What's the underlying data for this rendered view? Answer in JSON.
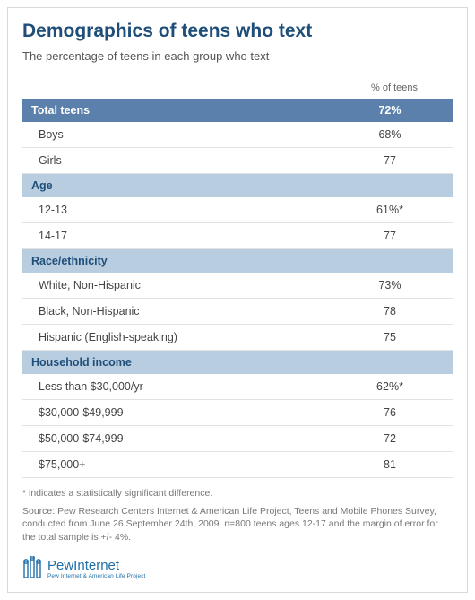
{
  "title": "Demographics of teens who text",
  "subtitle": "The percentage of teens in each group who text",
  "column_header": "% of teens",
  "colors": {
    "title": "#1f4e79",
    "section_dark_bg": "#5a80ab",
    "section_dark_fg": "#ffffff",
    "section_light_bg": "#b9cde1",
    "section_light_fg": "#1f4e79",
    "row_border": "#e2e2e2",
    "text": "#444444",
    "muted": "#777777",
    "logo": "#1f6fa8"
  },
  "sections": [
    {
      "type": "dark",
      "label": "Total teens",
      "value": "72%",
      "rows": [
        {
          "label": "Boys",
          "value": "68%"
        },
        {
          "label": "Girls",
          "value": "77"
        }
      ]
    },
    {
      "type": "light",
      "label": "Age",
      "value": "",
      "rows": [
        {
          "label": "12-13",
          "value": "61%*"
        },
        {
          "label": "14-17",
          "value": "77"
        }
      ]
    },
    {
      "type": "light",
      "label": "Race/ethnicity",
      "value": "",
      "rows": [
        {
          "label": "White, Non-Hispanic",
          "value": "73%"
        },
        {
          "label": "Black, Non-Hispanic",
          "value": "78"
        },
        {
          "label": "Hispanic (English-speaking)",
          "value": "75"
        }
      ]
    },
    {
      "type": "light",
      "label": "Household income",
      "value": "",
      "rows": [
        {
          "label": "Less than $30,000/yr",
          "value": "62%*"
        },
        {
          "label": "$30,000-$49,999",
          "value": "76"
        },
        {
          "label": "$50,000-$74,999",
          "value": "72"
        },
        {
          "label": "$75,000+",
          "value": "81"
        }
      ]
    }
  ],
  "footnote": "* indicates a statistically significant difference.",
  "source": "Source: Pew Research Centers Internet & American Life Project, Teens and Mobile Phones Survey, conducted from June 26  September 24th, 2009. n=800 teens ages 12-17 and the margin of error for the total sample is +/- 4%.",
  "logo": {
    "brand": "PewInternet",
    "tagline": "Pew Internet & American Life Project"
  }
}
